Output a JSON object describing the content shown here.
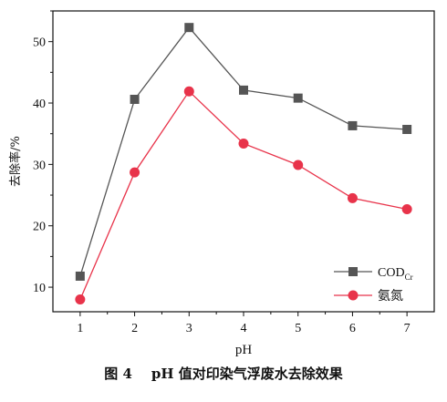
{
  "chart_data": {
    "type": "line",
    "xlabel": "pH",
    "ylabel": "去除率/%",
    "x": [
      1,
      2,
      3,
      4,
      5,
      6,
      7
    ],
    "xlim": [
      0.5,
      7.5
    ],
    "ylim": [
      6,
      55
    ],
    "xticks": [
      "1",
      "2",
      "3",
      "4",
      "5",
      "6",
      "7"
    ],
    "yticks": [
      "10",
      "20",
      "30",
      "40",
      "50"
    ],
    "grid": false,
    "legend_position": "bottom-right",
    "series": [
      {
        "name": "COD",
        "name_subscript": "Cr",
        "color": "#555555",
        "marker": "square",
        "values": [
          11.8,
          40.6,
          52.3,
          42.1,
          40.8,
          36.3,
          35.7
        ]
      },
      {
        "name": "氨氮",
        "color": "#e8334a",
        "marker": "circle",
        "values": [
          8.0,
          28.7,
          41.9,
          33.4,
          29.9,
          24.5,
          22.7
        ]
      }
    ]
  },
  "caption": "图 4    pH 值对印染气浮废水去除效果"
}
